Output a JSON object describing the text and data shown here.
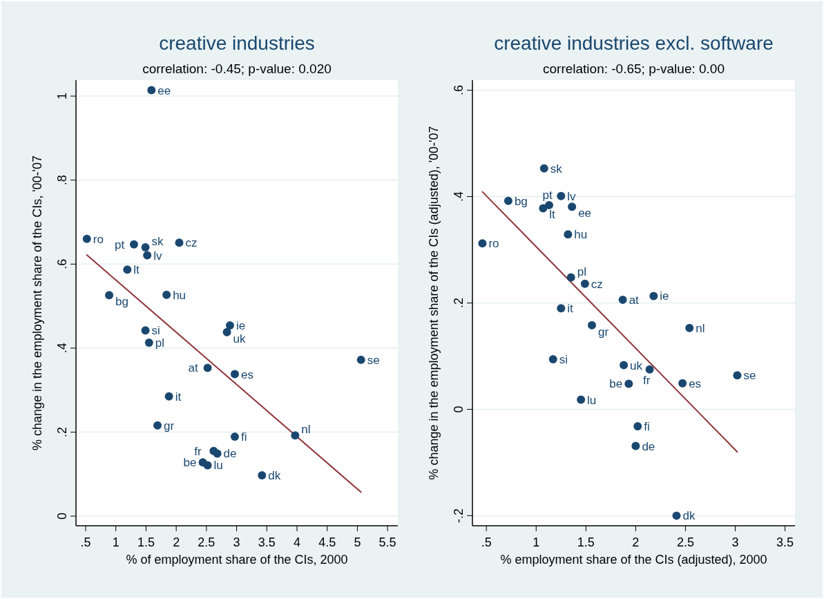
{
  "chart_data": [
    {
      "type": "scatter",
      "title": "creative industries",
      "subtitle": "correlation: -0.45; p-value: 0.020",
      "xlabel": "% of employment share of the CIs, 2000",
      "ylabel": "% change in the employment share of the CIs, '00-'07",
      "xlim": [
        0.34,
        5.67
      ],
      "ylim": [
        -0.023,
        1.038
      ],
      "xticks": [
        {
          "value": 0.5,
          "label": ".5"
        },
        {
          "value": 1,
          "label": "1"
        },
        {
          "value": 1.5,
          "label": "1.5"
        },
        {
          "value": 2,
          "label": "2"
        },
        {
          "value": 2.5,
          "label": "2.5"
        },
        {
          "value": 3,
          "label": "3"
        },
        {
          "value": 3.5,
          "label": "3.5"
        },
        {
          "value": 4,
          "label": "4"
        },
        {
          "value": 4.5,
          "label": "4.5"
        },
        {
          "value": 5,
          "label": "5"
        },
        {
          "value": 5.5,
          "label": "5.5"
        }
      ],
      "yticks": [
        {
          "value": 0,
          "label": "0"
        },
        {
          "value": 0.2,
          "label": ".2"
        },
        {
          "value": 0.4,
          "label": ".4"
        },
        {
          "value": 0.6,
          "label": ".6"
        },
        {
          "value": 0.8,
          "label": ".8"
        },
        {
          "value": 1,
          "label": "1"
        }
      ],
      "grid": "y",
      "series": [
        {
          "type": "scatter",
          "color": "#1a476f",
          "marker": "circle",
          "x": [
            1.59,
            0.52,
            1.3,
            1.49,
            1.52,
            2.05,
            1.19,
            0.89,
            1.84,
            1.49,
            1.55,
            2.89,
            2.84,
            5.06,
            2.52,
            2.97,
            1.88,
            1.69,
            2.97,
            3.97,
            2.62,
            2.68,
            2.44,
            2.52,
            3.42
          ],
          "values": [
            1.014,
            0.66,
            0.647,
            0.64,
            0.621,
            0.651,
            0.587,
            0.526,
            0.527,
            0.442,
            0.413,
            0.454,
            0.438,
            0.372,
            0.353,
            0.338,
            0.285,
            0.216,
            0.189,
            0.192,
            0.155,
            0.149,
            0.128,
            0.121,
            0.097
          ],
          "value_labels": [
            "ee",
            "ro",
            "pt",
            "sk",
            "lv",
            "cz",
            "lt",
            "bg",
            "hu",
            "si",
            "pl",
            "ie",
            "uk",
            "se",
            "at",
            "es",
            "it",
            "gr",
            "fi",
            "nl",
            "fr",
            "de",
            "be",
            "lu",
            "dk"
          ]
        },
        {
          "type": "line",
          "color": "#90353b",
          "x": [
            0.52,
            5.06
          ],
          "values": [
            0.622,
            0.057
          ]
        }
      ]
    },
    {
      "type": "scatter",
      "title": "creative industries excl. software",
      "subtitle": "correlation: -0.65; p-value: 0.00",
      "xlabel": "% employment share of the CIs (adjusted), 2000",
      "ylabel": "% change in the employment share of the CIs (adjusted), '00-'07",
      "xlim": [
        0.36,
        3.6
      ],
      "ylim": [
        -0.219,
        0.619
      ],
      "xticks": [
        {
          "value": 0.5,
          "label": ".5"
        },
        {
          "value": 1,
          "label": "1"
        },
        {
          "value": 1.5,
          "label": "1.5"
        },
        {
          "value": 2,
          "label": "2"
        },
        {
          "value": 2.5,
          "label": "2.5"
        },
        {
          "value": 3,
          "label": "3"
        },
        {
          "value": 3.5,
          "label": "3.5"
        }
      ],
      "yticks": [
        {
          "value": -0.2,
          "label": "-.2"
        },
        {
          "value": 0,
          "label": "0"
        },
        {
          "value": 0.2,
          "label": ".2"
        },
        {
          "value": 0.4,
          "label": ".4"
        },
        {
          "value": 0.6,
          "label": ".6"
        }
      ],
      "grid": "y",
      "series": [
        {
          "type": "scatter",
          "color": "#1a476f",
          "marker": "circle",
          "x": [
            1.08,
            1.25,
            0.72,
            1.13,
            1.07,
            1.36,
            1.32,
            0.46,
            1.35,
            1.49,
            1.87,
            2.18,
            1.25,
            1.56,
            2.54,
            1.17,
            1.88,
            2.14,
            3.02,
            1.93,
            2.47,
            1.45,
            2.02,
            2.0,
            2.41
          ],
          "values": [
            0.453,
            0.401,
            0.392,
            0.384,
            0.378,
            0.381,
            0.329,
            0.312,
            0.248,
            0.236,
            0.206,
            0.213,
            0.19,
            0.158,
            0.153,
            0.094,
            0.083,
            0.075,
            0.064,
            0.048,
            0.049,
            0.018,
            -0.032,
            -0.069,
            -0.2
          ],
          "value_labels": [
            "sk",
            "lv",
            "bg",
            "pt",
            "lt",
            "ee",
            "hu",
            "ro",
            "pl",
            "cz",
            "at",
            "ie",
            "it",
            "gr",
            "nl",
            "si",
            "uk",
            "fr",
            "se",
            "be",
            "es",
            "lu",
            "fi",
            "de",
            "dk"
          ]
        },
        {
          "type": "line",
          "color": "#90353b",
          "x": [
            0.46,
            3.02
          ],
          "values": [
            0.409,
            -0.08
          ]
        }
      ]
    }
  ]
}
